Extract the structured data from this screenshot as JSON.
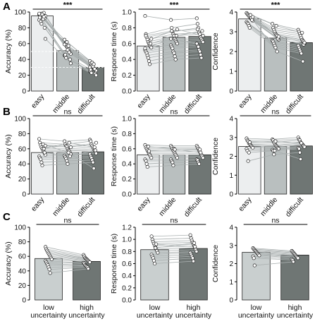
{
  "panel_labels": [
    "A",
    "B",
    "C"
  ],
  "colors": {
    "easy": "#eceeef",
    "middle": "#b9bfbf",
    "difficult": "#6f7674",
    "low": "#c9cfcf",
    "high": "#6f7674",
    "line": "#a9afaf",
    "point_edge": "#222222",
    "point_fill": "#ffffff",
    "highlight": "#d02020"
  },
  "chart_data": [
    {
      "id": "A1",
      "type": "bar",
      "ylabel": "Accuracy (%)",
      "ylim": [
        0,
        100
      ],
      "yticks": [
        0,
        20,
        40,
        60,
        80,
        100
      ],
      "categories": [
        "easy",
        "middle",
        "difficult"
      ],
      "rotate_xticks": true,
      "values": [
        95,
        51,
        30
      ],
      "significance": "***",
      "reference_lines": [
        50,
        30
      ],
      "subjects": [
        [
          97,
          65,
          38
        ],
        [
          96,
          60,
          35
        ],
        [
          95,
          58,
          33
        ],
        [
          98,
          56,
          32
        ],
        [
          94,
          55,
          30
        ],
        [
          93,
          53,
          29
        ],
        [
          99,
          50,
          28
        ],
        [
          92,
          48,
          27
        ],
        [
          95,
          47,
          26
        ],
        [
          90,
          45,
          25
        ],
        [
          96,
          44,
          24
        ],
        [
          88,
          42,
          23
        ],
        [
          85,
          62,
          36
        ],
        [
          97,
          52,
          31
        ],
        [
          91,
          57,
          34
        ],
        [
          94,
          49,
          28
        ],
        [
          80,
          40,
          22
        ],
        [
          66,
          35,
          20
        ],
        [
          98,
          59,
          30
        ],
        [
          93,
          46,
          27
        ]
      ]
    },
    {
      "id": "A2",
      "type": "bar",
      "ylabel": "Response time (s)",
      "ylim": [
        0,
        1
      ],
      "yticks": [
        0,
        0.2,
        0.4,
        0.6,
        0.8,
        1.0
      ],
      "categories": [
        "easy",
        "middle",
        "difficult"
      ],
      "rotate_xticks": true,
      "values": [
        0.57,
        0.68,
        0.69
      ],
      "significance": "***",
      "subjects": [
        [
          0.95,
          0.9,
          0.92
        ],
        [
          0.72,
          0.8,
          0.85
        ],
        [
          0.68,
          0.75,
          0.8
        ],
        [
          0.65,
          0.72,
          0.74
        ],
        [
          0.62,
          0.7,
          0.72
        ],
        [
          0.6,
          0.66,
          0.68
        ],
        [
          0.58,
          0.64,
          0.66
        ],
        [
          0.56,
          0.62,
          0.64
        ],
        [
          0.55,
          0.6,
          0.62
        ],
        [
          0.52,
          0.58,
          0.6
        ],
        [
          0.5,
          0.56,
          0.58
        ],
        [
          0.48,
          0.54,
          0.56
        ],
        [
          0.45,
          0.5,
          0.52
        ],
        [
          0.42,
          0.48,
          0.5
        ],
        [
          0.38,
          0.44,
          0.46
        ],
        [
          0.34,
          0.4,
          0.42
        ],
        [
          0.6,
          0.7,
          0.76
        ],
        [
          0.66,
          0.78,
          0.7
        ],
        [
          0.54,
          0.66,
          0.6
        ],
        [
          0.7,
          0.76,
          0.78
        ]
      ]
    },
    {
      "id": "A3",
      "type": "bar",
      "ylabel": "Confidence",
      "ylim": [
        0,
        4
      ],
      "yticks": [
        0,
        1,
        2,
        3,
        4
      ],
      "categories": [
        "easy",
        "middle",
        "difficult"
      ],
      "rotate_xticks": true,
      "values": [
        3.65,
        2.68,
        2.45
      ],
      "significance": "***",
      "subjects": [
        [
          3.95,
          3.4,
          3.1
        ],
        [
          3.9,
          3.2,
          3.0
        ],
        [
          3.85,
          3.1,
          2.9
        ],
        [
          3.8,
          3.0,
          2.8
        ],
        [
          3.75,
          2.9,
          2.7
        ],
        [
          3.7,
          2.85,
          2.6
        ],
        [
          3.65,
          2.8,
          2.55
        ],
        [
          3.6,
          2.7,
          2.5
        ],
        [
          3.55,
          2.6,
          2.4
        ],
        [
          3.5,
          2.55,
          2.3
        ],
        [
          3.45,
          2.5,
          2.2
        ],
        [
          3.4,
          2.4,
          2.1
        ],
        [
          3.3,
          2.3,
          2.0
        ],
        [
          3.2,
          2.2,
          1.9
        ],
        [
          3.85,
          3.3,
          2.95
        ],
        [
          3.7,
          2.0,
          1.5
        ],
        [
          3.6,
          2.65,
          2.35
        ],
        [
          3.75,
          2.75,
          2.45
        ]
      ]
    },
    {
      "id": "B1",
      "type": "bar",
      "ylabel": "Accuracy (%)",
      "ylim": [
        0,
        100
      ],
      "yticks": [
        0,
        20,
        40,
        60,
        80,
        100
      ],
      "categories": [
        "easy",
        "middle",
        "difficult"
      ],
      "rotate_xticks": true,
      "values": [
        55,
        55,
        56
      ],
      "significance": "ns",
      "subjects": [
        [
          73,
          70,
          72
        ],
        [
          68,
          66,
          70
        ],
        [
          65,
          64,
          66
        ],
        [
          62,
          63,
          64
        ],
        [
          60,
          60,
          62
        ],
        [
          58,
          58,
          60
        ],
        [
          56,
          57,
          58
        ],
        [
          54,
          55,
          56
        ],
        [
          52,
          53,
          54
        ],
        [
          50,
          51,
          53
        ],
        [
          48,
          49,
          50
        ],
        [
          46,
          47,
          48
        ],
        [
          42,
          44,
          45
        ],
        [
          38,
          40,
          42
        ],
        [
          66,
          55,
          34
        ],
        [
          60,
          68,
          62
        ],
        [
          55,
          50,
          58
        ],
        [
          64,
          62,
          68
        ]
      ]
    },
    {
      "id": "B2",
      "type": "bar",
      "ylabel": "Response time (s)",
      "ylim": [
        0,
        1
      ],
      "yticks": [
        0,
        0.2,
        0.4,
        0.6,
        0.8,
        1.0
      ],
      "categories": [
        "easy",
        "middle",
        "difficult"
      ],
      "rotate_xticks": true,
      "values": [
        0.52,
        0.52,
        0.52
      ],
      "significance": "ns",
      "subjects": [
        [
          0.65,
          0.64,
          0.64
        ],
        [
          0.62,
          0.62,
          0.62
        ],
        [
          0.6,
          0.6,
          0.6
        ],
        [
          0.58,
          0.58,
          0.58
        ],
        [
          0.56,
          0.56,
          0.56
        ],
        [
          0.54,
          0.54,
          0.54
        ],
        [
          0.52,
          0.52,
          0.52
        ],
        [
          0.5,
          0.5,
          0.5
        ],
        [
          0.48,
          0.48,
          0.48
        ],
        [
          0.46,
          0.46,
          0.46
        ],
        [
          0.44,
          0.44,
          0.45
        ],
        [
          0.4,
          0.42,
          0.42
        ],
        [
          0.36,
          0.38,
          0.4
        ],
        [
          0.63,
          0.6,
          0.59
        ],
        [
          0.57,
          0.59,
          0.55
        ]
      ]
    },
    {
      "id": "B3",
      "type": "bar",
      "ylabel": "Confidence",
      "ylim": [
        0,
        4
      ],
      "yticks": [
        0,
        1,
        2,
        3,
        4
      ],
      "categories": [
        "easy",
        "middle",
        "difficult"
      ],
      "rotate_xticks": true,
      "values": [
        2.52,
        2.52,
        2.55
      ],
      "significance": "ns",
      "subjects": [
        [
          2.95,
          2.9,
          3.0
        ],
        [
          2.85,
          2.85,
          2.9
        ],
        [
          2.8,
          2.75,
          2.85
        ],
        [
          2.7,
          2.7,
          2.75
        ],
        [
          2.65,
          2.6,
          2.7
        ],
        [
          2.6,
          2.55,
          2.65
        ],
        [
          2.55,
          2.5,
          2.6
        ],
        [
          2.5,
          2.45,
          2.55
        ],
        [
          2.45,
          2.4,
          2.5
        ],
        [
          2.4,
          2.35,
          2.45
        ],
        [
          2.3,
          2.3,
          2.4
        ],
        [
          1.75,
          2.1,
          2.2
        ],
        [
          2.2,
          2.3,
          1.85
        ],
        [
          2.75,
          2.8,
          2.7
        ]
      ]
    },
    {
      "id": "C1",
      "type": "bar",
      "ylabel": "Accuracy (%)",
      "ylim": [
        0,
        100
      ],
      "yticks": [
        0,
        20,
        40,
        60,
        80,
        100
      ],
      "categories": [
        "low\nuncertainty",
        "high\nuncertainty"
      ],
      "rotate_xticks": false,
      "values": [
        57,
        53
      ],
      "significance": "ns",
      "subjects": [
        [
          73,
          62
        ],
        [
          70,
          60
        ],
        [
          68,
          58
        ],
        [
          66,
          57
        ],
        [
          64,
          56
        ],
        [
          62,
          55
        ],
        [
          60,
          54
        ],
        [
          58,
          53
        ],
        [
          56,
          52
        ],
        [
          54,
          51
        ],
        [
          52,
          50
        ],
        [
          50,
          48
        ],
        [
          48,
          47
        ],
        [
          45,
          46
        ],
        [
          42,
          45
        ],
        [
          37,
          43
        ]
      ]
    },
    {
      "id": "C2",
      "type": "bar",
      "ylabel": "Response time (s)",
      "ylim": [
        0,
        1.2
      ],
      "yticks": [
        0,
        0.2,
        0.4,
        0.6,
        0.8,
        1.0,
        1.2
      ],
      "categories": [
        "low\nuncertainty",
        "high\nuncertainty"
      ],
      "rotate_xticks": false,
      "values": [
        0.83,
        0.85
      ],
      "significance": "ns",
      "subjects": [
        [
          1.05,
          1.07
        ],
        [
          1.0,
          1.02
        ],
        [
          0.96,
          0.98
        ],
        [
          0.93,
          0.95
        ],
        [
          0.9,
          0.92
        ],
        [
          0.87,
          0.89
        ],
        [
          0.84,
          0.86
        ],
        [
          0.81,
          0.83
        ],
        [
          0.78,
          0.8
        ],
        [
          0.75,
          0.78
        ],
        [
          0.72,
          0.75
        ],
        [
          0.69,
          0.72
        ],
        [
          0.65,
          0.69
        ],
        [
          0.6,
          0.64
        ],
        [
          0.86,
          0.94
        ],
        [
          0.92,
          0.88
        ]
      ]
    },
    {
      "id": "C3",
      "type": "bar",
      "ylabel": "Confidence",
      "ylim": [
        0,
        4
      ],
      "yticks": [
        0,
        1,
        2,
        3,
        4
      ],
      "categories": [
        "low\nuncertainty",
        "high\nuncertainty"
      ],
      "rotate_xticks": false,
      "values": [
        2.62,
        2.47
      ],
      "significance": "ns",
      "subjects": [
        [
          2.85,
          2.7
        ],
        [
          2.8,
          2.65
        ],
        [
          2.75,
          2.6
        ],
        [
          2.7,
          2.55
        ],
        [
          2.65,
          2.5
        ],
        [
          2.6,
          2.45
        ],
        [
          2.55,
          2.4
        ],
        [
          2.5,
          2.35
        ],
        [
          2.45,
          2.3
        ],
        [
          2.4,
          2.25
        ],
        [
          2.3,
          2.2
        ],
        [
          1.9,
          2.1
        ]
      ]
    }
  ]
}
